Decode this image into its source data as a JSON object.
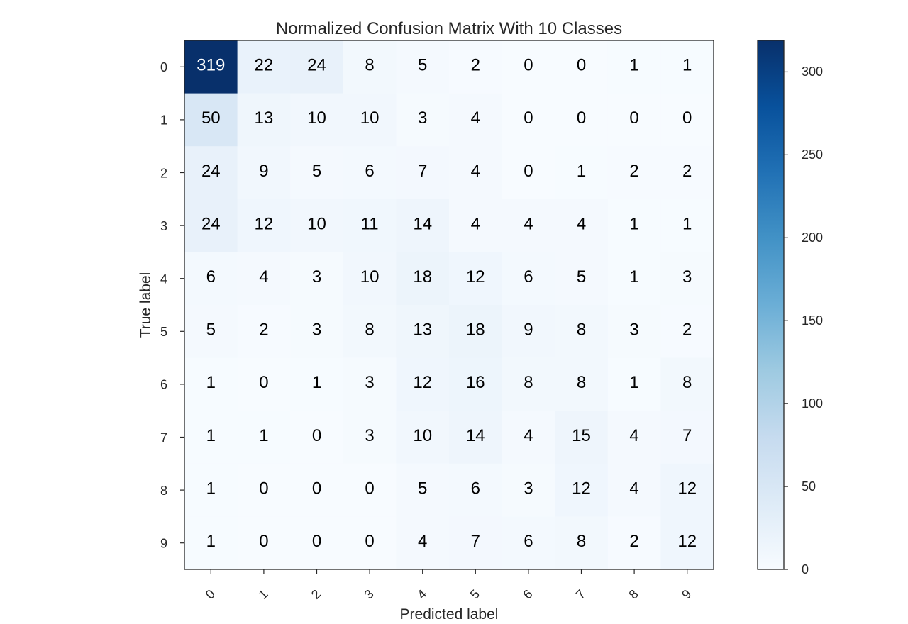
{
  "chart_data": {
    "type": "heatmap",
    "title": "Normalized Confusion Matrix With 10 Classes",
    "xlabel": "Predicted label",
    "ylabel": "True label",
    "x_categories": [
      "0",
      "1",
      "2",
      "3",
      "4",
      "5",
      "6",
      "7",
      "8",
      "9"
    ],
    "y_categories": [
      "0",
      "1",
      "2",
      "3",
      "4",
      "5",
      "6",
      "7",
      "8",
      "9"
    ],
    "values": [
      [
        319,
        22,
        24,
        8,
        5,
        2,
        0,
        0,
        1,
        1
      ],
      [
        50,
        13,
        10,
        10,
        3,
        4,
        0,
        0,
        0,
        0
      ],
      [
        24,
        9,
        5,
        6,
        7,
        4,
        0,
        1,
        2,
        2
      ],
      [
        24,
        12,
        10,
        11,
        14,
        4,
        4,
        4,
        1,
        1
      ],
      [
        6,
        4,
        3,
        10,
        18,
        12,
        6,
        5,
        1,
        3
      ],
      [
        5,
        2,
        3,
        8,
        13,
        18,
        9,
        8,
        3,
        2
      ],
      [
        1,
        0,
        1,
        3,
        12,
        16,
        8,
        8,
        1,
        8
      ],
      [
        1,
        1,
        0,
        3,
        10,
        14,
        4,
        15,
        4,
        7
      ],
      [
        1,
        0,
        0,
        0,
        5,
        6,
        3,
        12,
        4,
        12
      ],
      [
        1,
        0,
        0,
        0,
        4,
        7,
        6,
        8,
        2,
        12
      ]
    ],
    "colormap": "Blues",
    "colorbar": {
      "range": [
        0,
        319
      ],
      "ticks": [
        0,
        50,
        100,
        150,
        200,
        250,
        300
      ]
    },
    "grid": false
  }
}
